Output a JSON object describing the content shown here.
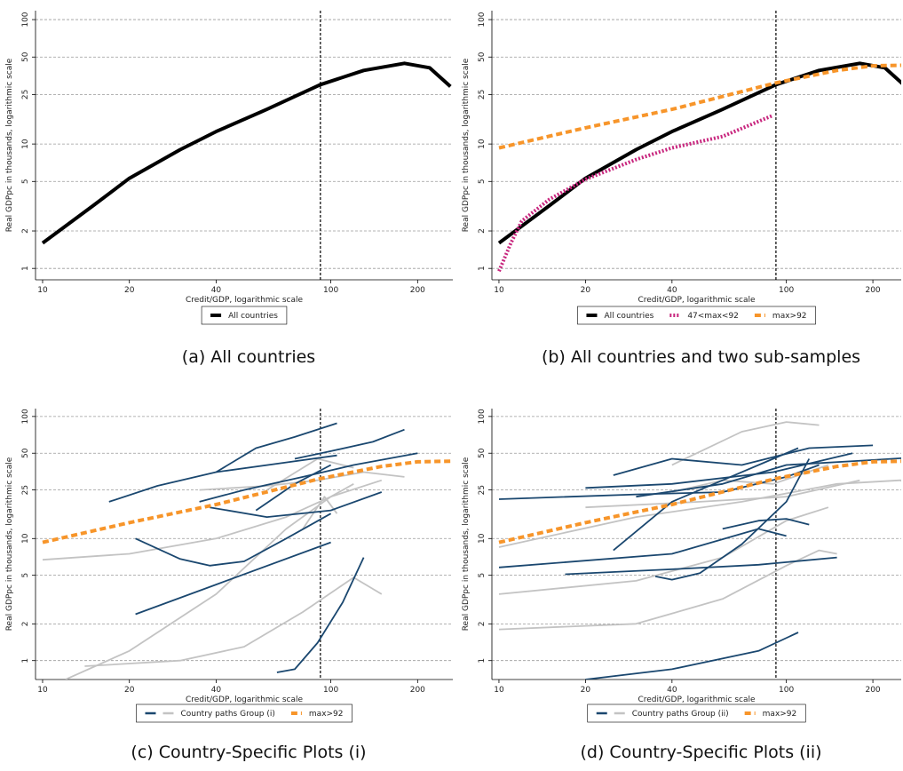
{
  "chart_data": [
    {
      "type": "line",
      "caption": "(a) All countries",
      "xlabel": "Credit/GDP, logarithmic scale",
      "ylabel": "Real GDPpc in thousands, logarithmic scale",
      "xscale": "log",
      "yscale": "log",
      "grid": true,
      "xlim": [
        9.45,
        265
      ],
      "ylim": [
        0.81,
        118
      ],
      "xticks": [
        10,
        20,
        40,
        100,
        200
      ],
      "yticks": [
        1,
        2,
        5,
        10,
        25,
        50,
        100
      ],
      "reference_line": 92,
      "series": [
        {
          "color": "#000000",
          "style": "solid",
          "x": [
            10,
            15,
            20,
            30,
            40,
            60,
            92,
            130,
            180,
            220,
            260
          ],
          "values": [
            1.6,
            3.2,
            5.3,
            9,
            12.6,
            19,
            30,
            39,
            44.5,
            41,
            29
          ]
        }
      ],
      "legend": [
        {
          "label": "All countries",
          "colors": [
            "#000000"
          ],
          "style": "solid"
        }
      ]
    },
    {
      "type": "line",
      "caption": "(b) All countries and two sub-samples",
      "xlabel": "Credit/GDP, logarithmic scale",
      "ylabel": "Real GDPpc in thousands, logarithmic scale",
      "xscale": "log",
      "yscale": "log",
      "grid": true,
      "xlim": [
        9.45,
        251
      ],
      "ylim": [
        0.81,
        118
      ],
      "xticks": [
        10,
        20,
        40,
        100,
        200
      ],
      "yticks": [
        1,
        2,
        5,
        10,
        25,
        50,
        100
      ],
      "reference_line": 92,
      "series": [
        {
          "color": "#000000",
          "style": "solid",
          "x": [
            10,
            15,
            20,
            30,
            40,
            60,
            92,
            130,
            180,
            220,
            260
          ],
          "values": [
            1.6,
            3.2,
            5.3,
            9,
            12.6,
            19,
            30,
            39,
            44.5,
            41,
            29
          ]
        },
        {
          "color": "#c8267e",
          "style": "dotted",
          "x": [
            10,
            11,
            12,
            15,
            20,
            30,
            40,
            60,
            90
          ],
          "values": [
            0.95,
            1.6,
            2.4,
            3.6,
            5.2,
            7.5,
            9.3,
            11.5,
            17
          ]
        },
        {
          "color": "#f7952a",
          "style": "dashed",
          "x": [
            10,
            20,
            40,
            92,
            150,
            200,
            260
          ],
          "values": [
            9.3,
            13.5,
            19,
            31,
            39,
            42.5,
            43
          ]
        }
      ],
      "legend": [
        {
          "label": "All countries",
          "colors": [
            "#000000"
          ],
          "style": "solid"
        },
        {
          "label": "47<max<92",
          "colors": [
            "#c8267e"
          ],
          "style": "dotted"
        },
        {
          "label": "max>92",
          "colors": [
            "#f7952a"
          ],
          "style": "dashed"
        }
      ]
    },
    {
      "type": "line",
      "caption": "(c) Country-Specific Plots (i)",
      "xlabel": "Credit/GDP, logarithmic scale",
      "ylabel": "Real GDPpc in thousands, logarithmic scale",
      "xscale": "log",
      "yscale": "log",
      "grid": true,
      "xlim": [
        9.45,
        265
      ],
      "ylim": [
        0.7,
        116
      ],
      "xticks": [
        10,
        20,
        40,
        100,
        200
      ],
      "yticks": [
        1,
        2,
        5,
        10,
        25,
        50,
        100
      ],
      "reference_line": 92,
      "series": [
        {
          "color": "#c3c3c3",
          "style": "thin",
          "x": [
            10,
            20,
            40,
            70,
            100,
            120
          ],
          "values": [
            6.7,
            7.5,
            10,
            15,
            22,
            28
          ]
        },
        {
          "color": "#c3c3c3",
          "style": "thin",
          "x": [
            12,
            20,
            40,
            70,
            100,
            150
          ],
          "values": [
            0.7,
            1.2,
            3.5,
            12,
            22,
            30
          ]
        },
        {
          "color": "#c3c3c3",
          "style": "thin",
          "x": [
            14,
            30,
            50,
            80,
            120,
            150
          ],
          "values": [
            0.9,
            1,
            1.3,
            2.5,
            4.8,
            3.5
          ]
        },
        {
          "color": "#c3c3c3",
          "style": "thin",
          "x": [
            35,
            60,
            90,
            130,
            180
          ],
          "values": [
            25,
            27,
            30,
            35,
            32
          ]
        },
        {
          "color": "#c3c3c3",
          "style": "thin",
          "x": [
            80,
            95,
            105
          ],
          "values": [
            12,
            22,
            16
          ]
        },
        {
          "color": "#c3c3c3",
          "style": "thin",
          "x": [
            60,
            90,
            120
          ],
          "values": [
            25,
            45,
            38
          ]
        },
        {
          "color": "#1a476f",
          "style": "thin",
          "x": [
            17,
            25,
            40,
            70,
            105
          ],
          "values": [
            20,
            27,
            35,
            42,
            48
          ]
        },
        {
          "color": "#1a476f",
          "style": "thin",
          "x": [
            40,
            55,
            75,
            105
          ],
          "values": [
            35,
            55,
            68,
            88
          ]
        },
        {
          "color": "#1a476f",
          "style": "thin",
          "x": [
            75,
            100,
            140,
            180
          ],
          "values": [
            45,
            52,
            62,
            78
          ]
        },
        {
          "color": "#1a476f",
          "style": "thin",
          "x": [
            35,
            50,
            80,
            120,
            200
          ],
          "values": [
            20,
            25,
            32,
            40,
            50
          ]
        },
        {
          "color": "#1a476f",
          "style": "thin",
          "x": [
            21,
            30,
            38,
            50,
            70,
            100
          ],
          "values": [
            10,
            6.8,
            6,
            6.5,
            10,
            16
          ]
        },
        {
          "color": "#1a476f",
          "style": "thin",
          "x": [
            21,
            40,
            100
          ],
          "values": [
            2.4,
            4.2,
            9.3
          ]
        },
        {
          "color": "#1a476f",
          "style": "thin",
          "x": [
            65,
            75,
            90,
            110,
            130
          ],
          "values": [
            0.8,
            0.85,
            1.4,
            3,
            7
          ]
        },
        {
          "color": "#1a476f",
          "style": "thin",
          "x": [
            38,
            60,
            100,
            150
          ],
          "values": [
            18,
            15,
            17,
            24
          ]
        },
        {
          "color": "#1a476f",
          "style": "thin",
          "x": [
            55,
            75,
            100
          ],
          "values": [
            17,
            28,
            40
          ]
        },
        {
          "color": "#f7952a",
          "style": "dashed",
          "x": [
            10,
            20,
            40,
            92,
            150,
            200,
            260
          ],
          "values": [
            9.3,
            13.5,
            19,
            31,
            39,
            42.5,
            43
          ]
        }
      ],
      "legend": [
        {
          "label": "Country paths Group (i)",
          "colors": [
            "#1a476f",
            "#c3c3c3"
          ],
          "style": "thin"
        },
        {
          "label": "max>92",
          "colors": [
            "#f7952a"
          ],
          "style": "dashed"
        }
      ]
    },
    {
      "type": "line",
      "caption": "(d) Country-Specific Plots (ii)",
      "xlabel": "Credit/GDP, logarithmic scale",
      "ylabel": "Real GDPpc in thousands, logarithmic scale",
      "xscale": "log",
      "yscale": "log",
      "grid": true,
      "xlim": [
        9.45,
        251
      ],
      "ylim": [
        0.7,
        116
      ],
      "xticks": [
        10,
        20,
        40,
        100,
        200
      ],
      "yticks": [
        1,
        2,
        5,
        10,
        25,
        50,
        100
      ],
      "reference_line": 92,
      "series": [
        {
          "color": "#c3c3c3",
          "style": "thin",
          "x": [
            10,
            30,
            60,
            100,
            140
          ],
          "values": [
            3.5,
            4.5,
            7,
            14,
            18
          ]
        },
        {
          "color": "#c3c3c3",
          "style": "thin",
          "x": [
            10,
            30,
            60,
            100,
            130,
            150
          ],
          "values": [
            1.8,
            2,
            3.2,
            6,
            8,
            7.5
          ]
        },
        {
          "color": "#c3c3c3",
          "style": "thin",
          "x": [
            40,
            70,
            100,
            130
          ],
          "values": [
            40,
            75,
            90,
            85
          ]
        },
        {
          "color": "#c3c3c3",
          "style": "thin",
          "x": [
            10,
            30,
            70,
            150,
            250,
            270
          ],
          "values": [
            8.5,
            15,
            20,
            28,
            30,
            26
          ]
        },
        {
          "color": "#c3c3c3",
          "style": "thin",
          "x": [
            20,
            50,
            100,
            180
          ],
          "values": [
            18,
            20,
            22,
            30
          ]
        },
        {
          "color": "#c3c3c3",
          "style": "thin",
          "x": [
            40,
            60,
            90,
            140
          ],
          "values": [
            24,
            30,
            28,
            40
          ]
        },
        {
          "color": "#1a476f",
          "style": "thin",
          "x": [
            10,
            30,
            60,
            100,
            130
          ],
          "values": [
            21,
            23,
            24,
            32,
            40
          ]
        },
        {
          "color": "#1a476f",
          "style": "thin",
          "x": [
            25,
            40,
            70,
            120,
            200
          ],
          "values": [
            33,
            45,
            40,
            55,
            58
          ]
        },
        {
          "color": "#1a476f",
          "style": "thin",
          "x": [
            10,
            40,
            80,
            100
          ],
          "values": [
            5.8,
            7.5,
            12,
            10.5
          ]
        },
        {
          "color": "#1a476f",
          "style": "thin",
          "x": [
            17,
            40,
            80,
            150
          ],
          "values": [
            5.1,
            5.6,
            6.1,
            7
          ]
        },
        {
          "color": "#1a476f",
          "style": "thin",
          "x": [
            20,
            40,
            80,
            110
          ],
          "values": [
            0.7,
            0.85,
            1.2,
            1.7
          ]
        },
        {
          "color": "#1a476f",
          "style": "thin",
          "x": [
            25,
            40,
            60,
            90,
            110
          ],
          "values": [
            8,
            20,
            30,
            45,
            55
          ]
        },
        {
          "color": "#1a476f",
          "style": "thin",
          "x": [
            35,
            40,
            50,
            70,
            100,
            120
          ],
          "values": [
            4.9,
            4.6,
            5.2,
            9,
            20,
            45
          ]
        },
        {
          "color": "#1a476f",
          "style": "thin",
          "x": [
            20,
            40,
            90,
            170
          ],
          "values": [
            26,
            28,
            35,
            50
          ]
        },
        {
          "color": "#1a476f",
          "style": "thin",
          "x": [
            60,
            80,
            100,
            120
          ],
          "values": [
            12,
            14,
            14.5,
            13
          ]
        },
        {
          "color": "#1a476f",
          "style": "thin",
          "x": [
            30,
            60,
            100,
            200,
            270
          ],
          "values": [
            22,
            28,
            40,
            44,
            46
          ]
        },
        {
          "color": "#f7952a",
          "style": "dashed",
          "x": [
            10,
            20,
            40,
            92,
            150,
            200,
            260
          ],
          "values": [
            9.3,
            13.5,
            19,
            31,
            39,
            42.5,
            43
          ]
        }
      ],
      "legend": [
        {
          "label": "Country paths Group (ii)",
          "colors": [
            "#1a476f",
            "#c3c3c3"
          ],
          "style": "thin"
        },
        {
          "label": "max>92",
          "colors": [
            "#f7952a"
          ],
          "style": "dashed"
        }
      ]
    }
  ]
}
